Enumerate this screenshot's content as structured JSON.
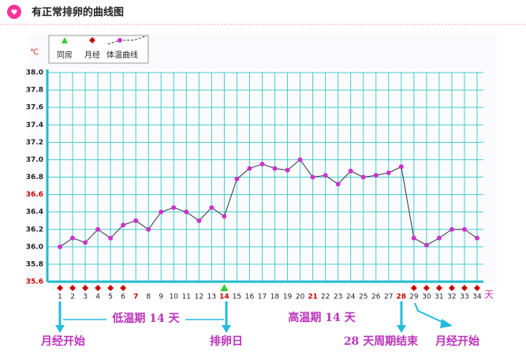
{
  "header": {
    "title": "有正常排卵的曲线图"
  },
  "chart_data": {
    "type": "line",
    "y_unit": "℃",
    "x_unit": "天",
    "x": [
      1,
      2,
      3,
      4,
      5,
      6,
      7,
      8,
      9,
      10,
      11,
      12,
      13,
      14,
      15,
      16,
      17,
      18,
      19,
      20,
      21,
      22,
      23,
      24,
      25,
      26,
      27,
      28,
      29,
      30,
      31,
      32,
      33,
      34
    ],
    "series": [
      {
        "name": "体温曲线",
        "color": "#cc33cc",
        "values": [
          36.0,
          36.1,
          36.05,
          36.2,
          36.1,
          36.25,
          36.3,
          36.2,
          36.4,
          36.45,
          36.4,
          36.3,
          36.45,
          36.35,
          36.78,
          36.9,
          36.95,
          36.9,
          36.88,
          37.0,
          36.8,
          36.82,
          36.72,
          36.87,
          36.8,
          36.82,
          36.85,
          36.92,
          36.1,
          36.02,
          36.1,
          36.2,
          36.2,
          36.1
        ]
      }
    ],
    "intercourse_label": "同房",
    "intercourse_color": "#33cc33",
    "intercourse_days": [
      14
    ],
    "menses_label": "月经",
    "menses_color": "#cc0000",
    "menses_days": [
      1,
      2,
      3,
      4,
      5,
      6,
      29,
      30,
      31,
      32,
      33,
      34
    ],
    "xlim": [
      0,
      34.5
    ],
    "xticks": [
      1,
      2,
      3,
      4,
      5,
      6,
      7,
      8,
      9,
      10,
      11,
      12,
      13,
      14,
      15,
      16,
      17,
      18,
      19,
      20,
      21,
      22,
      23,
      24,
      25,
      26,
      27,
      28,
      29,
      30,
      31,
      32,
      33,
      34
    ],
    "ylim": [
      35.6,
      38.0
    ],
    "yticks": [
      35.6,
      35.8,
      {
        "value": 36.0,
        "label": "36.0"
      },
      36.2,
      36.4,
      36.6,
      36.8,
      {
        "value": 37.0,
        "label": "37.0"
      },
      37.2,
      37.4,
      37.6,
      37.8,
      {
        "value": 38.0,
        "label": "38.0"
      }
    ],
    "highlight_color": "#cc0000",
    "highlight_xticks": [
      7,
      14,
      21,
      28
    ],
    "highlight_yticks": [
      35.6,
      36.6
    ],
    "grid": true,
    "annotations": [
      "低温期 14 天",
      "高温期 14 天",
      "月经开始",
      "排卵日",
      "28 天周期结束",
      "月经开始"
    ]
  }
}
